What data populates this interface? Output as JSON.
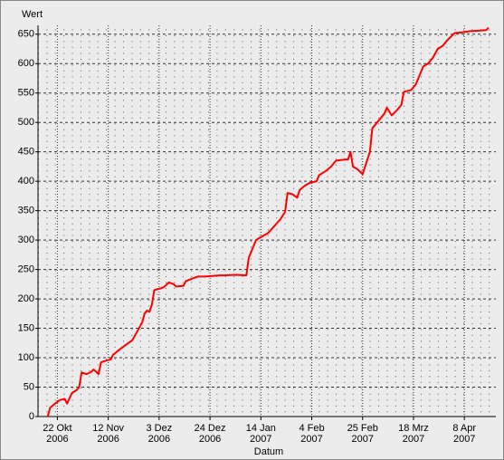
{
  "chart_data": {
    "type": "line",
    "y_axis_label": "Wert",
    "x_axis_label": "Datum",
    "x": [
      "2006-10-18",
      "2006-10-19",
      "2006-10-21",
      "2006-10-23",
      "2006-10-25",
      "2006-10-26",
      "2006-10-28",
      "2006-10-30",
      "2006-10-31",
      "2006-11-01",
      "2006-11-03",
      "2006-11-05",
      "2006-11-06",
      "2006-11-08",
      "2006-11-09",
      "2006-11-11",
      "2006-11-13",
      "2006-11-14",
      "2006-11-17",
      "2006-11-22",
      "2006-11-26",
      "2006-11-27",
      "2006-11-28",
      "2006-11-29",
      "2006-11-30",
      "2006-12-01",
      "2006-12-03",
      "2006-12-05",
      "2006-12-07",
      "2006-12-09",
      "2006-12-10",
      "2006-12-13",
      "2006-12-14",
      "2006-12-17",
      "2006-12-19",
      "2006-12-22",
      "2006-12-28",
      "2006-12-30",
      "2007-01-04",
      "2007-01-08",
      "2007-01-09",
      "2007-01-12",
      "2007-01-14",
      "2007-01-17",
      "2007-01-22",
      "2007-01-24",
      "2007-01-25",
      "2007-01-27",
      "2007-01-29",
      "2007-01-30",
      "2007-02-01",
      "2007-02-03",
      "2007-02-06",
      "2007-02-07",
      "2007-02-10",
      "2007-02-12",
      "2007-02-14",
      "2007-02-18",
      "2007-02-19",
      "2007-02-20",
      "2007-02-21",
      "2007-02-23",
      "2007-02-25",
      "2007-02-28",
      "2007-03-01",
      "2007-03-04",
      "2007-03-06",
      "2007-03-07",
      "2007-03-09",
      "2007-03-11",
      "2007-03-13",
      "2007-03-14",
      "2007-03-17",
      "2007-03-19",
      "2007-03-22",
      "2007-03-24",
      "2007-03-26",
      "2007-03-28",
      "2007-03-30",
      "2007-04-01",
      "2007-04-04",
      "2007-04-07",
      "2007-04-10",
      "2007-04-14",
      "2007-04-17",
      "2007-04-18"
    ],
    "series": [
      {
        "color": "#ff0000",
        "values": [
          0,
          15,
          22,
          28,
          30,
          22,
          40,
          45,
          50,
          75,
          72,
          76,
          80,
          72,
          92,
          95,
          97,
          105,
          115,
          130,
          160,
          175,
          180,
          178,
          190,
          215,
          217,
          220,
          228,
          225,
          221,
          222,
          230,
          235,
          238,
          238,
          240,
          240,
          241,
          240,
          270,
          300,
          305,
          312,
          335,
          348,
          380,
          378,
          372,
          385,
          392,
          397,
          400,
          410,
          418,
          425,
          435,
          437,
          437,
          450,
          425,
          420,
          412,
          450,
          490,
          505,
          515,
          525,
          512,
          520,
          530,
          552,
          555,
          565,
          595,
          600,
          610,
          625,
          630,
          640,
          652,
          653,
          655,
          656,
          657,
          661
        ]
      }
    ],
    "xlim": [
      "2006-10-14",
      "2007-04-21"
    ],
    "xticks": [
      {
        "value": "2006-10-22",
        "label": [
          "22 Okt",
          "2006"
        ]
      },
      {
        "value": "2006-11-12",
        "label": [
          "12 Nov",
          "2006"
        ]
      },
      {
        "value": "2006-12-03",
        "label": [
          "3 Dez",
          "2006"
        ]
      },
      {
        "value": "2006-12-24",
        "label": [
          "24 Dez",
          "2006"
        ]
      },
      {
        "value": "2007-01-14",
        "label": [
          "14 Jan",
          "2007"
        ]
      },
      {
        "value": "2007-02-04",
        "label": [
          "4 Feb",
          "2007"
        ]
      },
      {
        "value": "2007-02-25",
        "label": [
          "25 Feb",
          "2007"
        ]
      },
      {
        "value": "2007-03-18",
        "label": [
          "18 Mrz",
          "2007"
        ]
      },
      {
        "value": "2007-04-08",
        "label": [
          "8 Apr",
          "2007"
        ]
      }
    ],
    "ylim": [
      0,
      665
    ],
    "yticks": [
      0,
      50,
      100,
      150,
      200,
      250,
      300,
      350,
      400,
      450,
      500,
      550,
      600,
      650
    ],
    "grid": true
  }
}
